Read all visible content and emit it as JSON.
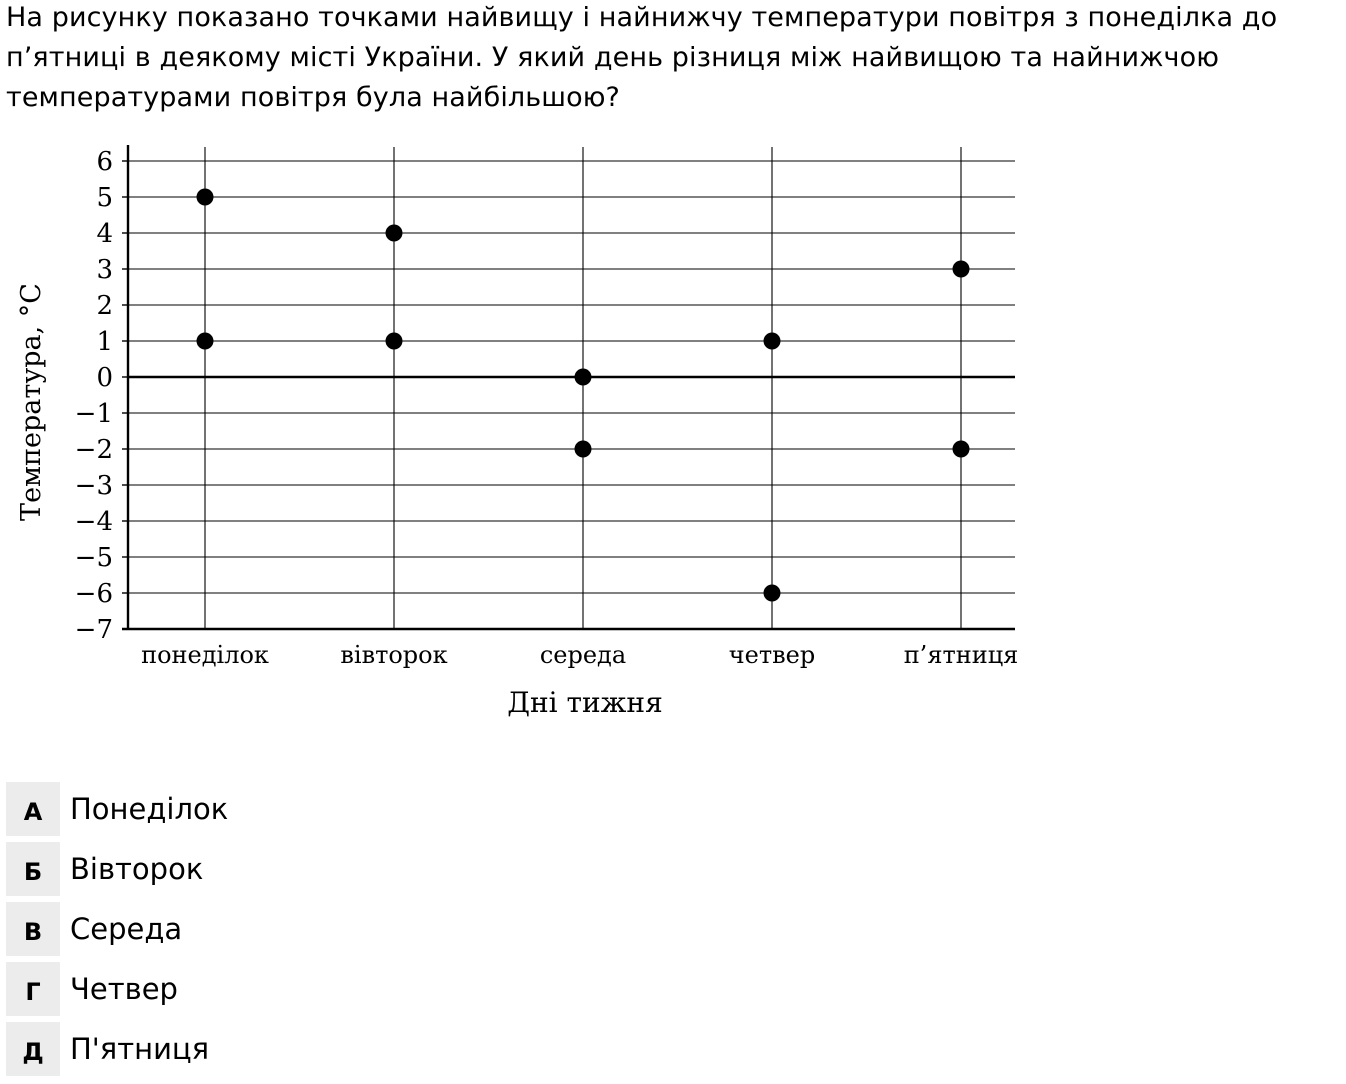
{
  "question": {
    "text": "На рисунку показано точками найвищу і найнижчу температури повітря з понеділка до п’ятниці в деякому місті України. У який день різниця між найвищою та найнижчою температурами повітря була найбільшою?"
  },
  "chart_data": {
    "type": "scatter",
    "title": "",
    "xlabel": "Дні тижня",
    "ylabel": "Температура, °С",
    "categories": [
      "понеділок",
      "вівторок",
      "середа",
      "четвер",
      "п’ятниця"
    ],
    "ylim": [
      -7,
      6
    ],
    "yticks": [
      6,
      5,
      4,
      3,
      2,
      1,
      0,
      -1,
      -2,
      -3,
      -4,
      -5,
      -6,
      -7
    ],
    "ytick_labels": [
      "6",
      "5",
      "4",
      "3",
      "2",
      "1",
      "0",
      "−1",
      "−2",
      "−3",
      "−4",
      "−5",
      "−6",
      "−7"
    ],
    "grid": true,
    "points": [
      {
        "x": "понеділок",
        "y": 5
      },
      {
        "x": "понеділок",
        "y": 1
      },
      {
        "x": "вівторок",
        "y": 4
      },
      {
        "x": "вівторок",
        "y": 1
      },
      {
        "x": "середа",
        "y": 0
      },
      {
        "x": "середа",
        "y": -2
      },
      {
        "x": "четвер",
        "y": 1
      },
      {
        "x": "четвер",
        "y": -6
      },
      {
        "x": "п’ятниця",
        "y": 3
      },
      {
        "x": "п’ятниця",
        "y": -2
      }
    ],
    "point_color": "#000000"
  },
  "options": [
    {
      "letter": "А",
      "text": "Понеділок"
    },
    {
      "letter": "Б",
      "text": "Вівторок"
    },
    {
      "letter": "В",
      "text": "Середа"
    },
    {
      "letter": "Г",
      "text": "Четвер"
    },
    {
      "letter": "Д",
      "text": "П'ятниця"
    }
  ]
}
